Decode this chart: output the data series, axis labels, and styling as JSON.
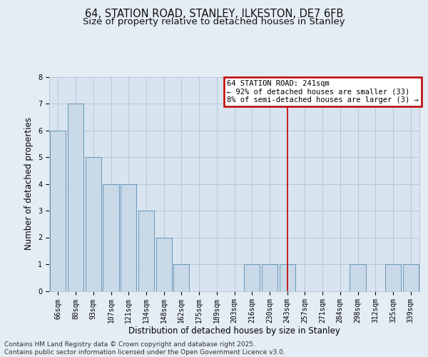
{
  "title1": "64, STATION ROAD, STANLEY, ILKESTON, DE7 6FB",
  "title2": "Size of property relative to detached houses in Stanley",
  "xlabel": "Distribution of detached houses by size in Stanley",
  "ylabel": "Number of detached properties",
  "categories": [
    "66sqm",
    "80sqm",
    "93sqm",
    "107sqm",
    "121sqm",
    "134sqm",
    "148sqm",
    "162sqm",
    "175sqm",
    "189sqm",
    "203sqm",
    "216sqm",
    "230sqm",
    "243sqm",
    "257sqm",
    "271sqm",
    "284sqm",
    "298sqm",
    "312sqm",
    "325sqm",
    "339sqm"
  ],
  "values": [
    6,
    7,
    5,
    4,
    4,
    3,
    2,
    1,
    0,
    0,
    0,
    1,
    1,
    1,
    0,
    0,
    0,
    1,
    0,
    1,
    1
  ],
  "bar_color": "#c9d9e8",
  "bar_edge_color": "#5a8ab0",
  "highlight_bar_index": 13,
  "highlight_line_color": "#c00000",
  "annotation_line1": "64 STATION ROAD: 241sqm",
  "annotation_line2": "← 92% of detached houses are smaller (33)",
  "annotation_line3": "8% of semi-detached houses are larger (3) →",
  "annotation_box_color": "#c00000",
  "ylim": [
    0,
    8
  ],
  "yticks": [
    0,
    1,
    2,
    3,
    4,
    5,
    6,
    7,
    8
  ],
  "grid_color": "#b8c8d8",
  "bg_color": "#e4ecf4",
  "plot_bg_color": "#d8e4f0",
  "footer_text": "Contains HM Land Registry data © Crown copyright and database right 2025.\nContains public sector information licensed under the Open Government Licence v3.0.",
  "title_fontsize": 10.5,
  "subtitle_fontsize": 9.5,
  "axis_label_fontsize": 8.5,
  "tick_fontsize": 7,
  "footer_fontsize": 6.5,
  "annot_fontsize": 7.5
}
